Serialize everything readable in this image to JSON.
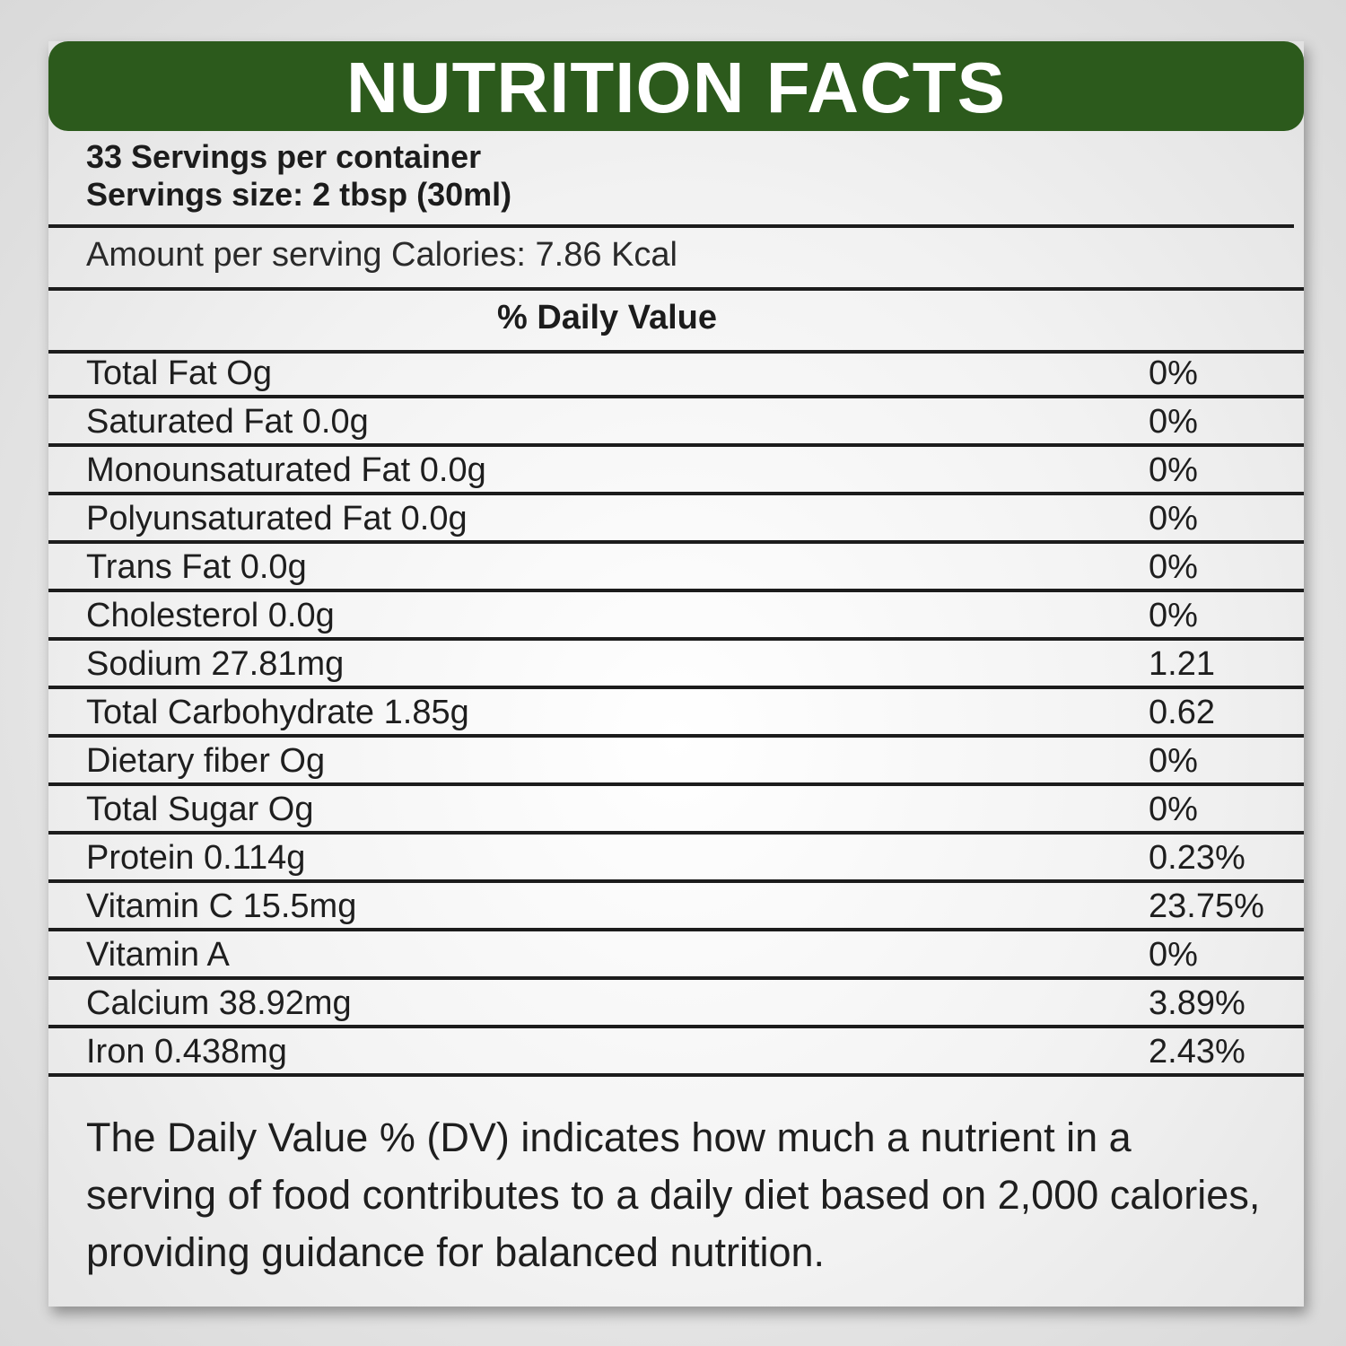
{
  "header": {
    "title": "NUTRITION FACTS"
  },
  "servings": {
    "per_container": "33 Servings per container",
    "size": "Servings size: 2 tbsp (30ml)"
  },
  "calories": "Amount per serving Calories: 7.86 Kcal",
  "dv_header": "% Daily Value",
  "nutrients": [
    {
      "name": "Total Fat Og",
      "dv": "0%"
    },
    {
      "name": "Saturated Fat 0.0g",
      "dv": "0%"
    },
    {
      "name": "Monounsaturated Fat 0.0g",
      "dv": "0%"
    },
    {
      "name": "Polyunsaturated Fat 0.0g",
      "dv": "0%"
    },
    {
      "name": "Trans Fat 0.0g",
      "dv": "0%"
    },
    {
      "name": "Cholesterol 0.0g",
      "dv": "0%"
    },
    {
      "name": "Sodium 27.81mg",
      "dv": "1.21"
    },
    {
      "name": "Total Carbohydrate 1.85g",
      "dv": "0.62"
    },
    {
      "name": "Dietary fiber Og",
      "dv": "0%"
    },
    {
      "name": "Total Sugar Og",
      "dv": "0%"
    },
    {
      "name": "Protein 0.114g",
      "dv": "0.23%"
    },
    {
      "name": "Vitamin C 15.5mg",
      "dv": "23.75%"
    },
    {
      "name": "Vitamin A",
      "dv": "0%"
    },
    {
      "name": "Calcium 38.92mg",
      "dv": "3.89%"
    },
    {
      "name": "Iron 0.438mg",
      "dv": "2.43%"
    }
  ],
  "footnote": "The Daily Value % (DV) indicates how much a nutrient in a serving of food contributes to a daily diet based on 2,000 calories, providing guidance for balanced nutrition.",
  "colors": {
    "header_bg": "#2c5a1c",
    "header_text": "#ffffff",
    "rule": "#1c1c1c"
  }
}
